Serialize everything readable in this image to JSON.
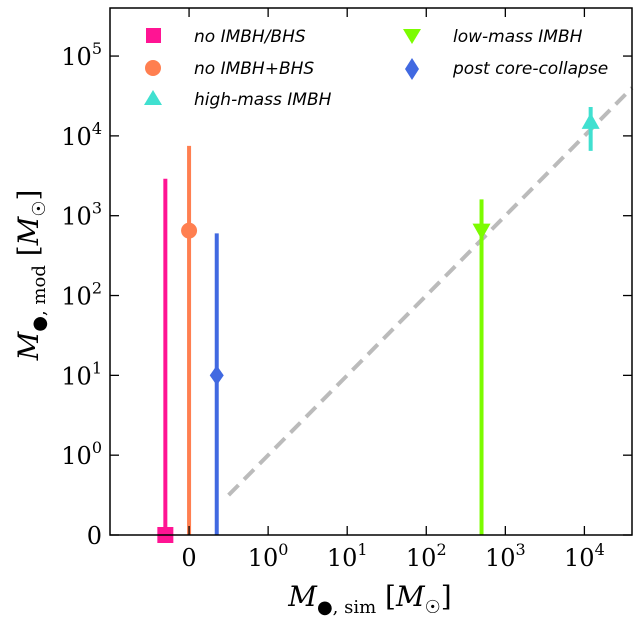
{
  "chart_data": {
    "type": "scatter",
    "xscale": "symlog",
    "yscale": "symlog",
    "xlim": [
      -1,
      40000
    ],
    "ylim": [
      0,
      400000
    ],
    "xlabel": "M●, sim [M☉]",
    "ylabel": "M●, mod [M☉]",
    "xticks": [
      "0",
      "10^0",
      "10^1",
      "10^2",
      "10^3",
      "10^4"
    ],
    "yticks": [
      "0",
      "10^0",
      "10^1",
      "10^2",
      "10^3",
      "10^4",
      "10^5"
    ],
    "grid": false,
    "legend_position": "top",
    "reference_line": {
      "style": "dashed",
      "color": "#bbbbbb",
      "relation": "y = x"
    },
    "series": [
      {
        "name": "no IMBH/BHS",
        "marker": "square",
        "color": "#ff1493",
        "points": [
          {
            "x": -0.3,
            "y": 0,
            "ylow": 0,
            "yhigh": 2900
          }
        ]
      },
      {
        "name": "no IMBH+BHS",
        "marker": "circle",
        "color": "#ff7f50",
        "points": [
          {
            "x": 0,
            "y": 650,
            "ylow": 0,
            "yhigh": 7500
          }
        ]
      },
      {
        "name": "high-mass IMBH",
        "marker": "triangle-up",
        "color": "#40e0d0",
        "points": [
          {
            "x": 12000,
            "y": 15000,
            "ylow": 6500,
            "yhigh": 23000
          }
        ]
      },
      {
        "name": "low-mass IMBH",
        "marker": "triangle-down",
        "color": "#7cfc00",
        "points": [
          {
            "x": 500,
            "y": 650,
            "ylow": 0,
            "yhigh": 1600
          }
        ]
      },
      {
        "name": "post core-collapse",
        "marker": "diamond",
        "color": "#4169e1",
        "points": [
          {
            "x": 0.35,
            "y": 10,
            "ylow": 0,
            "yhigh": 600
          }
        ]
      }
    ]
  }
}
